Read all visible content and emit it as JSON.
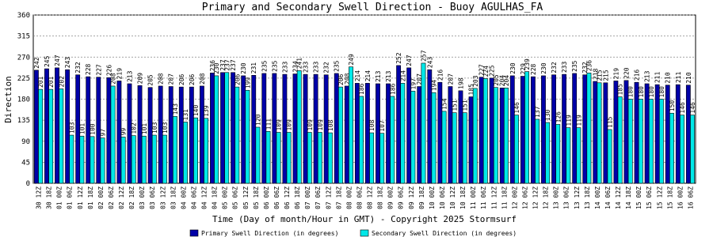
{
  "chart_data": {
    "type": "bar",
    "title": "Primary and Secondary Swell Direction - Buoy AGULHAS_FA",
    "x_label": "Time (Day of month/Hour in GMT) - Copyright 2025 Stormsurf",
    "y_label": "Direction",
    "categories": [
      "30 12Z",
      "30 18Z",
      "01 00Z",
      "01 06Z",
      "01 12Z",
      "01 18Z",
      "02 00Z",
      "02 06Z",
      "02 12Z",
      "02 18Z",
      "03 00Z",
      "03 06Z",
      "03 12Z",
      "03 18Z",
      "04 00Z",
      "04 06Z",
      "04 12Z",
      "04 18Z",
      "05 00Z",
      "05 06Z",
      "05 12Z",
      "05 18Z",
      "06 00Z",
      "06 06Z",
      "06 12Z",
      "06 18Z",
      "07 00Z",
      "07 06Z",
      "07 12Z",
      "07 18Z",
      "08 00Z",
      "08 06Z",
      "08 12Z",
      "08 18Z",
      "09 00Z",
      "09 06Z",
      "09 12Z",
      "09 18Z",
      "10 00Z",
      "10 06Z",
      "10 12Z",
      "10 18Z",
      "11 00Z",
      "11 06Z",
      "11 12Z",
      "11 18Z",
      "12 00Z",
      "12 06Z",
      "12 12Z",
      "12 18Z",
      "13 00Z",
      "13 06Z",
      "13 12Z",
      "13 18Z",
      "14 00Z",
      "14 06Z",
      "14 12Z",
      "14 18Z",
      "15 00Z",
      "15 06Z",
      "15 12Z",
      "15 18Z",
      "16 00Z",
      "16 06Z"
    ],
    "series": [
      {
        "name": "Primary Swell Direction (in degrees)",
        "color": "#0000a8",
        "values": [
          242,
          245,
          247,
          243,
          232,
          228,
          227,
          226,
          219,
          213,
          209,
          205,
          208,
          207,
          206,
          206,
          208,
          236,
          237,
          237,
          230,
          231,
          235,
          235,
          233,
          234,
          233,
          233,
          232,
          235,
          208,
          214,
          214,
          213,
          213,
          252,
          247,
          207,
          243,
          216,
          207,
          198,
          185,
          227,
          225,
          204,
          230,
          229,
          228,
          230,
          232,
          233,
          235,
          232,
          218,
          215,
          219,
          220,
          216,
          213,
          211,
          210,
          211,
          210
        ]
      },
      {
        "name": "Secondary Swell Direction (in degrees)",
        "color": "#00e8e8",
        "values": [
          201,
          201,
          202,
          103,
          101,
          100,
          97,
          208,
          99,
          102,
          101,
          103,
          103,
          143,
          131,
          140,
          139,
          230,
          237,
          206,
          199,
          120,
          111,
          109,
          109,
          241,
          109,
          109,
          108,
          206,
          249,
          186,
          108,
          107,
          186,
          214,
          197,
          257,
          194,
          154,
          151,
          151,
          203,
          224,
          205,
          204,
          146,
          239,
          137,
          130,
          126,
          119,
          119,
          236,
          215,
          115,
          185,
          180,
          180,
          180,
          180,
          150,
          146,
          146
        ]
      }
    ],
    "ylim": [
      0,
      360
    ],
    "yticks": [
      0,
      45,
      90,
      135,
      180,
      225,
      270,
      315,
      360
    ],
    "grid": true
  }
}
